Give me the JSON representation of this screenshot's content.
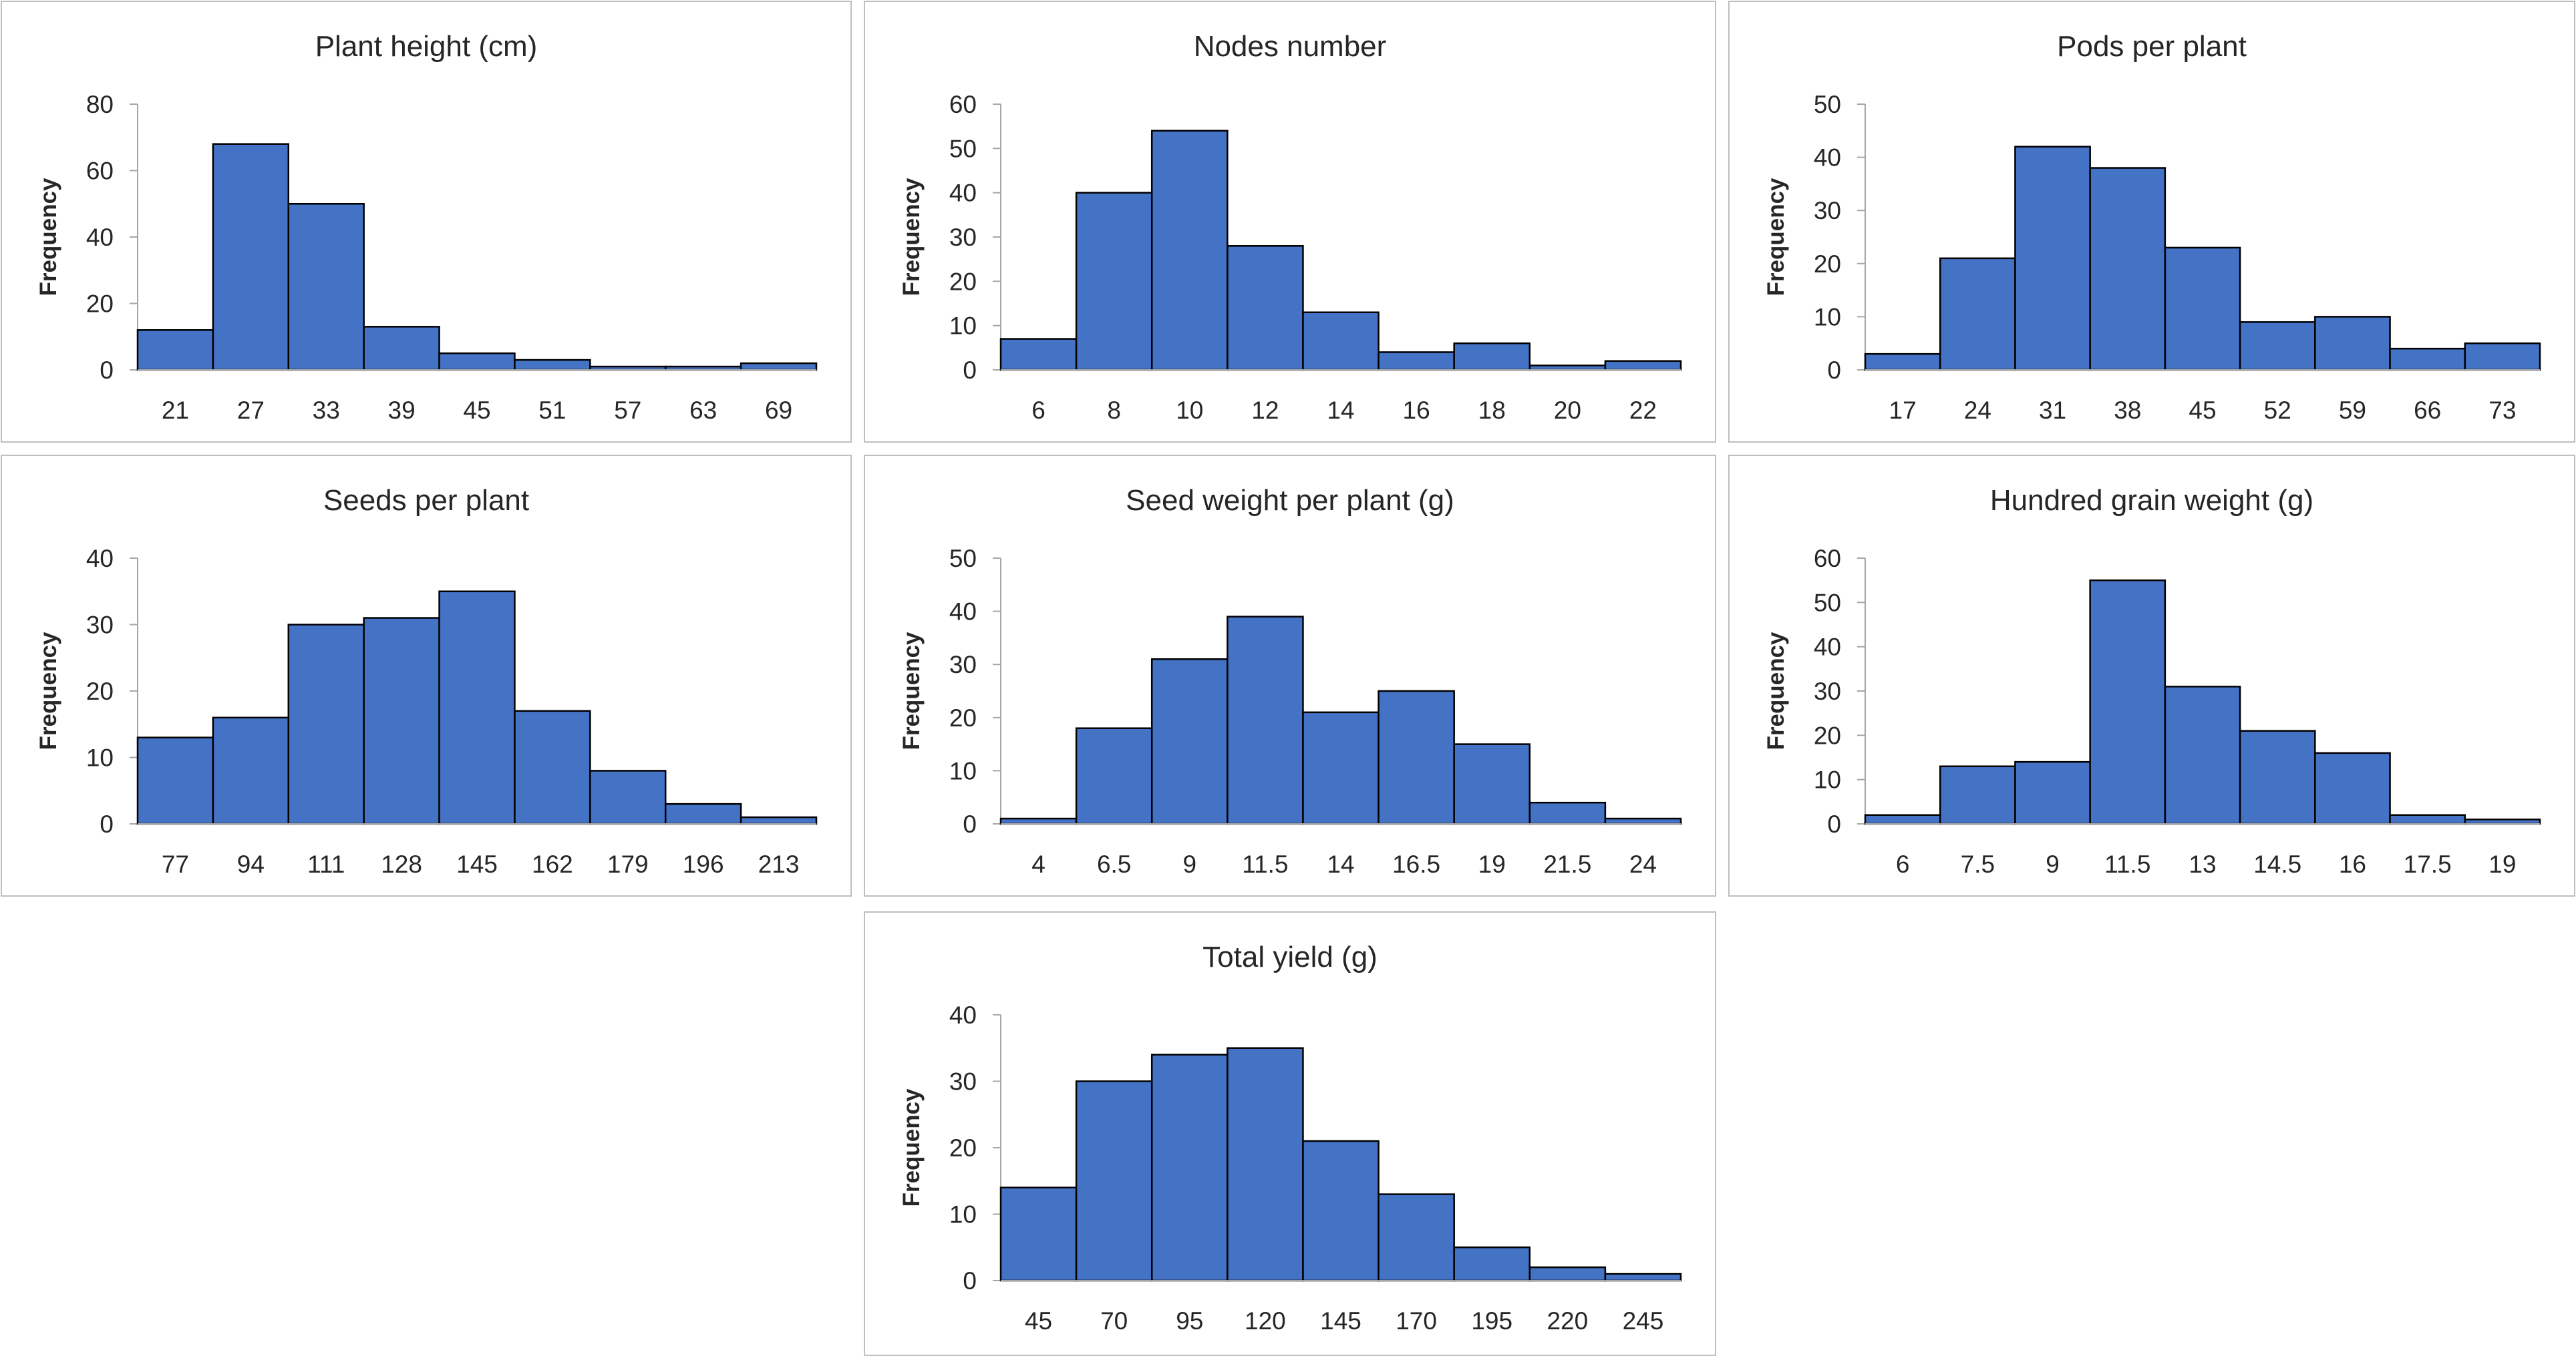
{
  "colors": {
    "bar": "#4472c4",
    "bar_edge": "#000000",
    "axis": "#a6a6a6",
    "text": "#262626",
    "frame": "#bfbfbf"
  },
  "chart_data": [
    {
      "type": "bar",
      "title": "Plant height (cm)",
      "xlabel": "",
      "ylabel": "Frequency",
      "ylim": [
        0,
        80
      ],
      "yticks": [
        "0",
        "20",
        "40",
        "60",
        "80"
      ],
      "categories": [
        "21",
        "27",
        "33",
        "39",
        "45",
        "51",
        "57",
        "63",
        "69"
      ],
      "values": [
        12,
        68,
        50,
        13,
        5,
        3,
        1,
        1,
        2
      ]
    },
    {
      "type": "bar",
      "title": "Nodes number",
      "xlabel": "",
      "ylabel": "Frequency",
      "ylim": [
        0,
        60
      ],
      "yticks": [
        "0",
        "10",
        "20",
        "30",
        "40",
        "50",
        "60"
      ],
      "categories": [
        "6",
        "8",
        "10",
        "12",
        "14",
        "16",
        "18",
        "20",
        "22"
      ],
      "values": [
        7,
        40,
        54,
        28,
        13,
        4,
        6,
        1,
        2
      ]
    },
    {
      "type": "bar",
      "title": "Pods per plant",
      "xlabel": "",
      "ylabel": "Frequency",
      "ylim": [
        0,
        50
      ],
      "yticks": [
        "0",
        "10",
        "20",
        "30",
        "40",
        "50"
      ],
      "categories": [
        "17",
        "24",
        "31",
        "38",
        "45",
        "52",
        "59",
        "66",
        "73"
      ],
      "values": [
        3,
        21,
        42,
        38,
        23,
        9,
        10,
        4,
        5
      ]
    },
    {
      "type": "bar",
      "title": "Seeds per plant",
      "xlabel": "",
      "ylabel": "Frequency",
      "ylim": [
        0,
        40
      ],
      "yticks": [
        "0",
        "10",
        "20",
        "30",
        "40"
      ],
      "categories": [
        "77",
        "94",
        "111",
        "128",
        "145",
        "162",
        "179",
        "196",
        "213"
      ],
      "values": [
        13,
        16,
        30,
        31,
        35,
        17,
        8,
        3,
        1
      ]
    },
    {
      "type": "bar",
      "title": "Seed weight per plant (g)",
      "xlabel": "",
      "ylabel": "Frequency",
      "ylim": [
        0,
        50
      ],
      "yticks": [
        "0",
        "10",
        "20",
        "30",
        "40",
        "50"
      ],
      "categories": [
        "4",
        "6.5",
        "9",
        "11.5",
        "14",
        "16.5",
        "19",
        "21.5",
        "24"
      ],
      "values": [
        1,
        18,
        31,
        39,
        21,
        25,
        15,
        4,
        1
      ]
    },
    {
      "type": "bar",
      "title": "Hundred grain weight (g)",
      "xlabel": "",
      "ylabel": "Frequency",
      "ylim": [
        0,
        60
      ],
      "yticks": [
        "0",
        "10",
        "20",
        "30",
        "40",
        "50",
        "60"
      ],
      "categories": [
        "6",
        "7.5",
        "9",
        "11.5",
        "13",
        "14.5",
        "16",
        "17.5",
        "19"
      ],
      "values": [
        2,
        13,
        14,
        55,
        31,
        21,
        16,
        2,
        1
      ]
    },
    {
      "type": "bar",
      "title": "Total yield (g)",
      "xlabel": "",
      "ylabel": "Frequency",
      "ylim": [
        0,
        40
      ],
      "yticks": [
        "0",
        "10",
        "20",
        "30",
        "40"
      ],
      "categories": [
        "45",
        "70",
        "95",
        "120",
        "145",
        "170",
        "195",
        "220",
        "245"
      ],
      "values": [
        14,
        30,
        34,
        35,
        21,
        13,
        5,
        2,
        1
      ]
    }
  ]
}
